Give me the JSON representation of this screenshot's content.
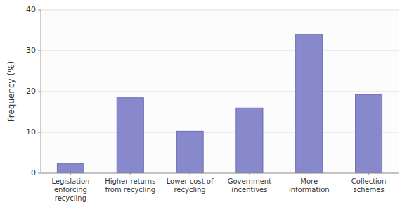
{
  "chart_data": {
    "type": "bar",
    "categories": [
      "Legislation\nenforcing\nrecycling",
      "Higher returns\nfrom recycling",
      "Lower cost of\nrecycling",
      "Government\nincentives",
      "More\ninformation",
      "Collection\nschemes"
    ],
    "values": [
      2.3,
      18.5,
      10.3,
      16.0,
      34.0,
      19.3
    ],
    "color": "#8888cc",
    "ylabel": "Frequency (%)",
    "ylim": [
      0,
      40
    ],
    "yticks": [
      0,
      10,
      20,
      30,
      40
    ],
    "grid": true
  }
}
